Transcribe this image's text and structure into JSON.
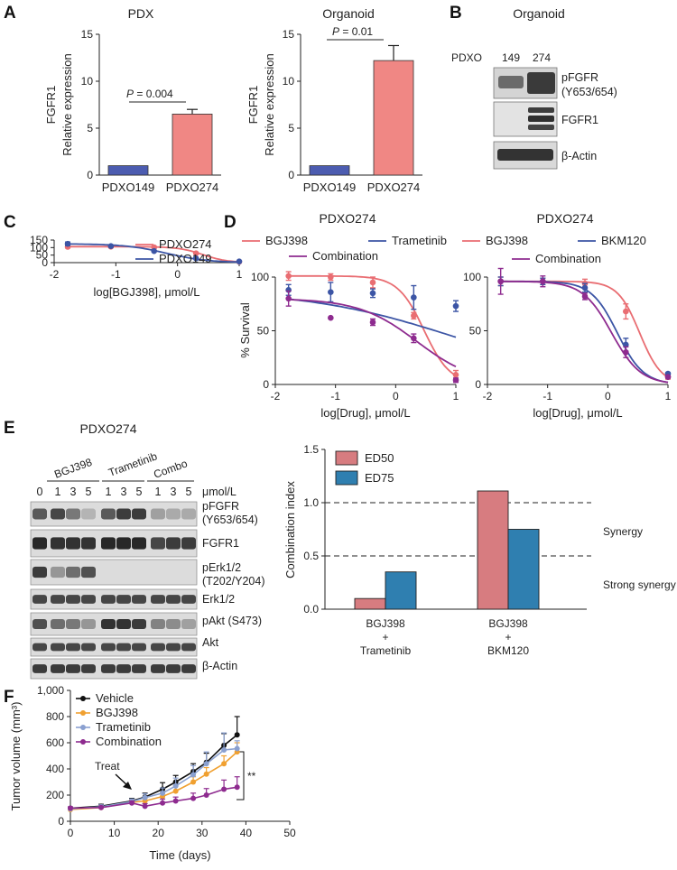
{
  "colors": {
    "pdxo274": "#e96d72",
    "pdxo149": "#3c55a5",
    "bgj398": "#e96d72",
    "trametinib": "#3c55a5",
    "combination": "#8e2b8f",
    "bkm120": "#3c55a5",
    "bar_pdxo149": "#4c5cb0",
    "bar_pdxo274": "#f08784",
    "ed50": "#d77c80",
    "ed75": "#2f7fb0",
    "vehicle": "#111111",
    "bgj398_f": "#f0a030",
    "trametinib_f": "#8aa0d0",
    "combination_f": "#8e2b8f"
  },
  "panels": {
    "A": "A",
    "B": "B",
    "C": "C",
    "D": "D",
    "E": "E",
    "F": "F"
  },
  "panelA": {
    "pdx": {
      "title": "PDX",
      "ylabel1": "FGFR1",
      "ylabel2": "Relative expression",
      "pvalue_prefix": "P",
      "pvalue_rest": " = 0.004"
    },
    "organoid": {
      "title": "Organoid",
      "ylabel1": "FGFR1",
      "ylabel2": "Relative expression",
      "pvalue_prefix": "P",
      "pvalue_rest": " = 0.01"
    }
  },
  "panelB": {
    "title": "Organoid",
    "pdxo_label": "PDXO",
    "lane1": "149",
    "lane2": "274",
    "band1a": "pFGFR",
    "band1b": "(Y653/654)",
    "band2": "FGFR1",
    "band3": "β-Actin"
  },
  "panelD": {
    "left_title": "PDXO274",
    "right_title": "PDXO274",
    "ylabel": "% Survival"
  },
  "panelE": {
    "title": "PDXO274",
    "group1": "BGJ398",
    "group2": "Trametinib",
    "group3": "Combo",
    "lane_labels": [
      "0",
      "1",
      "3",
      "5",
      "1",
      "3",
      "5",
      "1",
      "3",
      "5"
    ],
    "unit": "μmol/L",
    "bands": [
      "pFGFR",
      "(Y653/654)",
      "FGFR1",
      "pErk1/2",
      "(T202/Y204)",
      "Erk1/2",
      "pAkt (S473)",
      "Akt",
      "β-Actin"
    ],
    "synergy": "Synergy",
    "strong_synergy": "Strong synergy",
    "combo1_line1": "BGJ398",
    "combo1_line2": "+",
    "combo1_line3": "Trametinib",
    "combo2_line1": "BGJ398",
    "combo2_line2": "+",
    "combo2_line3": "BKM120"
  },
  "panelF": {
    "treat": "Treat",
    "significance": "**"
  },
  "chart_data": [
    {
      "id": "A-PDX",
      "type": "bar",
      "title": "PDX",
      "ylabel": "FGFR1 Relative expression",
      "categories": [
        "PDXO149",
        "PDXO274"
      ],
      "values": [
        1.0,
        6.5
      ],
      "errors": [
        0,
        0.5
      ],
      "ylim": [
        0,
        15
      ],
      "yticks": [
        0,
        5,
        10,
        15
      ],
      "annotation": "P = 0.004"
    },
    {
      "id": "A-Organoid",
      "type": "bar",
      "title": "Organoid",
      "ylabel": "FGFR1 Relative expression",
      "categories": [
        "PDXO149",
        "PDXO274"
      ],
      "values": [
        1.0,
        12.2
      ],
      "errors": [
        0,
        1.6
      ],
      "ylim": [
        0,
        15
      ],
      "yticks": [
        0,
        5,
        10,
        15
      ],
      "annotation": "P = 0.01"
    },
    {
      "id": "C",
      "type": "line",
      "xlabel": "log[BGJ398], μmol/L",
      "ylabel": "",
      "xlim": [
        -2,
        1
      ],
      "xticks": [
        -2,
        -1,
        0,
        1
      ],
      "ylim": [
        0,
        150
      ],
      "yticks": [
        0,
        50,
        100,
        150
      ],
      "x": [
        -1.78,
        -1.08,
        -0.38,
        0.3,
        1.0
      ],
      "series": [
        {
          "name": "PDXO274",
          "values": [
            105,
            106,
            102,
            62,
            6
          ],
          "errors": [
            7,
            6,
            7,
            4,
            2
          ]
        },
        {
          "name": "PDXO149",
          "values": [
            125,
            110,
            77,
            28,
            8
          ],
          "errors": [
            12,
            7,
            3,
            2,
            1
          ]
        }
      ],
      "legend": "top-right"
    },
    {
      "id": "D-left",
      "type": "line",
      "title": "PDXO274",
      "xlabel": "log[Drug], μmol/L",
      "ylabel": "% Survival",
      "xlim": [
        -2,
        1
      ],
      "xticks": [
        -2,
        -1,
        0,
        1
      ],
      "ylim": [
        0,
        100
      ],
      "yticks": [
        0,
        50,
        100
      ],
      "x": [
        -1.78,
        -1.08,
        -0.38,
        0.3,
        1.0
      ],
      "series": [
        {
          "name": "BGJ398",
          "values": [
            101,
            100,
            95,
            64,
            9
          ],
          "errors": [
            4,
            3,
            5,
            3,
            4
          ]
        },
        {
          "name": "Trametinib",
          "values": [
            88,
            86,
            85,
            81,
            73
          ],
          "errors": [
            5,
            9,
            4,
            11,
            5
          ]
        },
        {
          "name": "Combination",
          "values": [
            80,
            62,
            58,
            43,
            4
          ],
          "errors": [
            7,
            0,
            3,
            4,
            2
          ]
        }
      ],
      "legend": "top"
    },
    {
      "id": "D-right",
      "type": "line",
      "title": "PDXO274",
      "xlabel": "log[Drug], μmol/L",
      "ylabel": "",
      "xlim": [
        -2,
        1
      ],
      "xticks": [
        -2,
        -1,
        0,
        1
      ],
      "ylim": [
        0,
        100
      ],
      "yticks": [
        0,
        50,
        100
      ],
      "x": [
        -1.78,
        -1.08,
        -0.38,
        0.3,
        1.0
      ],
      "series": [
        {
          "name": "BGJ398",
          "values": [
            96,
            96,
            94,
            68,
            7
          ],
          "errors": [
            4,
            3,
            4,
            7,
            2
          ]
        },
        {
          "name": "BKM120",
          "values": [
            96,
            96,
            90,
            37,
            10
          ],
          "errors": [
            4,
            3,
            4,
            6,
            1
          ]
        },
        {
          "name": "Combination",
          "values": [
            96,
            96,
            82,
            30,
            7
          ],
          "errors": [
            12,
            5,
            3,
            5,
            1
          ]
        }
      ],
      "legend": "top"
    },
    {
      "id": "E-CI",
      "type": "bar",
      "ylabel": "Combination index",
      "categories": [
        "BGJ398 + Trametinib",
        "BGJ398 + BKM120"
      ],
      "series": [
        {
          "name": "ED50",
          "values": [
            0.1,
            1.11
          ]
        },
        {
          "name": "ED75",
          "values": [
            0.35,
            0.75
          ]
        }
      ],
      "ylim": [
        0,
        1.5
      ],
      "yticks": [
        0.0,
        0.5,
        1.0,
        1.5
      ],
      "reference_lines": [
        1.0,
        0.5
      ],
      "legend": "top-left"
    },
    {
      "id": "F",
      "type": "line",
      "xlabel": "Time (days)",
      "ylabel": "Tumor volume (mm³)",
      "xlim": [
        0,
        50
      ],
      "xticks": [
        0,
        10,
        20,
        30,
        40,
        50
      ],
      "ylim": [
        0,
        1000
      ],
      "yticks": [
        0,
        200,
        400,
        600,
        800,
        1000
      ],
      "ytick_labels": [
        "0",
        "200",
        "400",
        "600",
        "800",
        "1,000"
      ],
      "series": [
        {
          "name": "Vehicle",
          "x": [
            0,
            7,
            14,
            17,
            21,
            24,
            28,
            31,
            35,
            38
          ],
          "values": [
            100,
            115,
            155,
            185,
            245,
            300,
            380,
            450,
            580,
            660
          ],
          "errors": [
            10,
            15,
            20,
            30,
            50,
            50,
            60,
            70,
            90,
            140
          ]
        },
        {
          "name": "BGJ398",
          "x": [
            0,
            7,
            14,
            17,
            21,
            24,
            28,
            31,
            35,
            38
          ],
          "values": [
            90,
            105,
            145,
            155,
            190,
            230,
            300,
            360,
            440,
            530
          ],
          "errors": [
            10,
            10,
            15,
            20,
            30,
            40,
            40,
            50,
            60,
            70
          ]
        },
        {
          "name": "Trametinib",
          "x": [
            0,
            7,
            14,
            17,
            21,
            24,
            28,
            31,
            35,
            38
          ],
          "values": [
            95,
            110,
            150,
            180,
            215,
            270,
            355,
            440,
            545,
            555
          ],
          "errors": [
            10,
            15,
            20,
            30,
            40,
            60,
            70,
            90,
            130,
            60
          ]
        },
        {
          "name": "Combination",
          "x": [
            0,
            7,
            14,
            17,
            21,
            24,
            28,
            31,
            35,
            38
          ],
          "values": [
            100,
            105,
            140,
            115,
            140,
            155,
            175,
            200,
            245,
            260
          ],
          "errors": [
            10,
            10,
            15,
            20,
            30,
            30,
            40,
            50,
            70,
            80
          ]
        }
      ],
      "legend": "top-left",
      "annotations": [
        "Treat",
        "**"
      ]
    }
  ]
}
